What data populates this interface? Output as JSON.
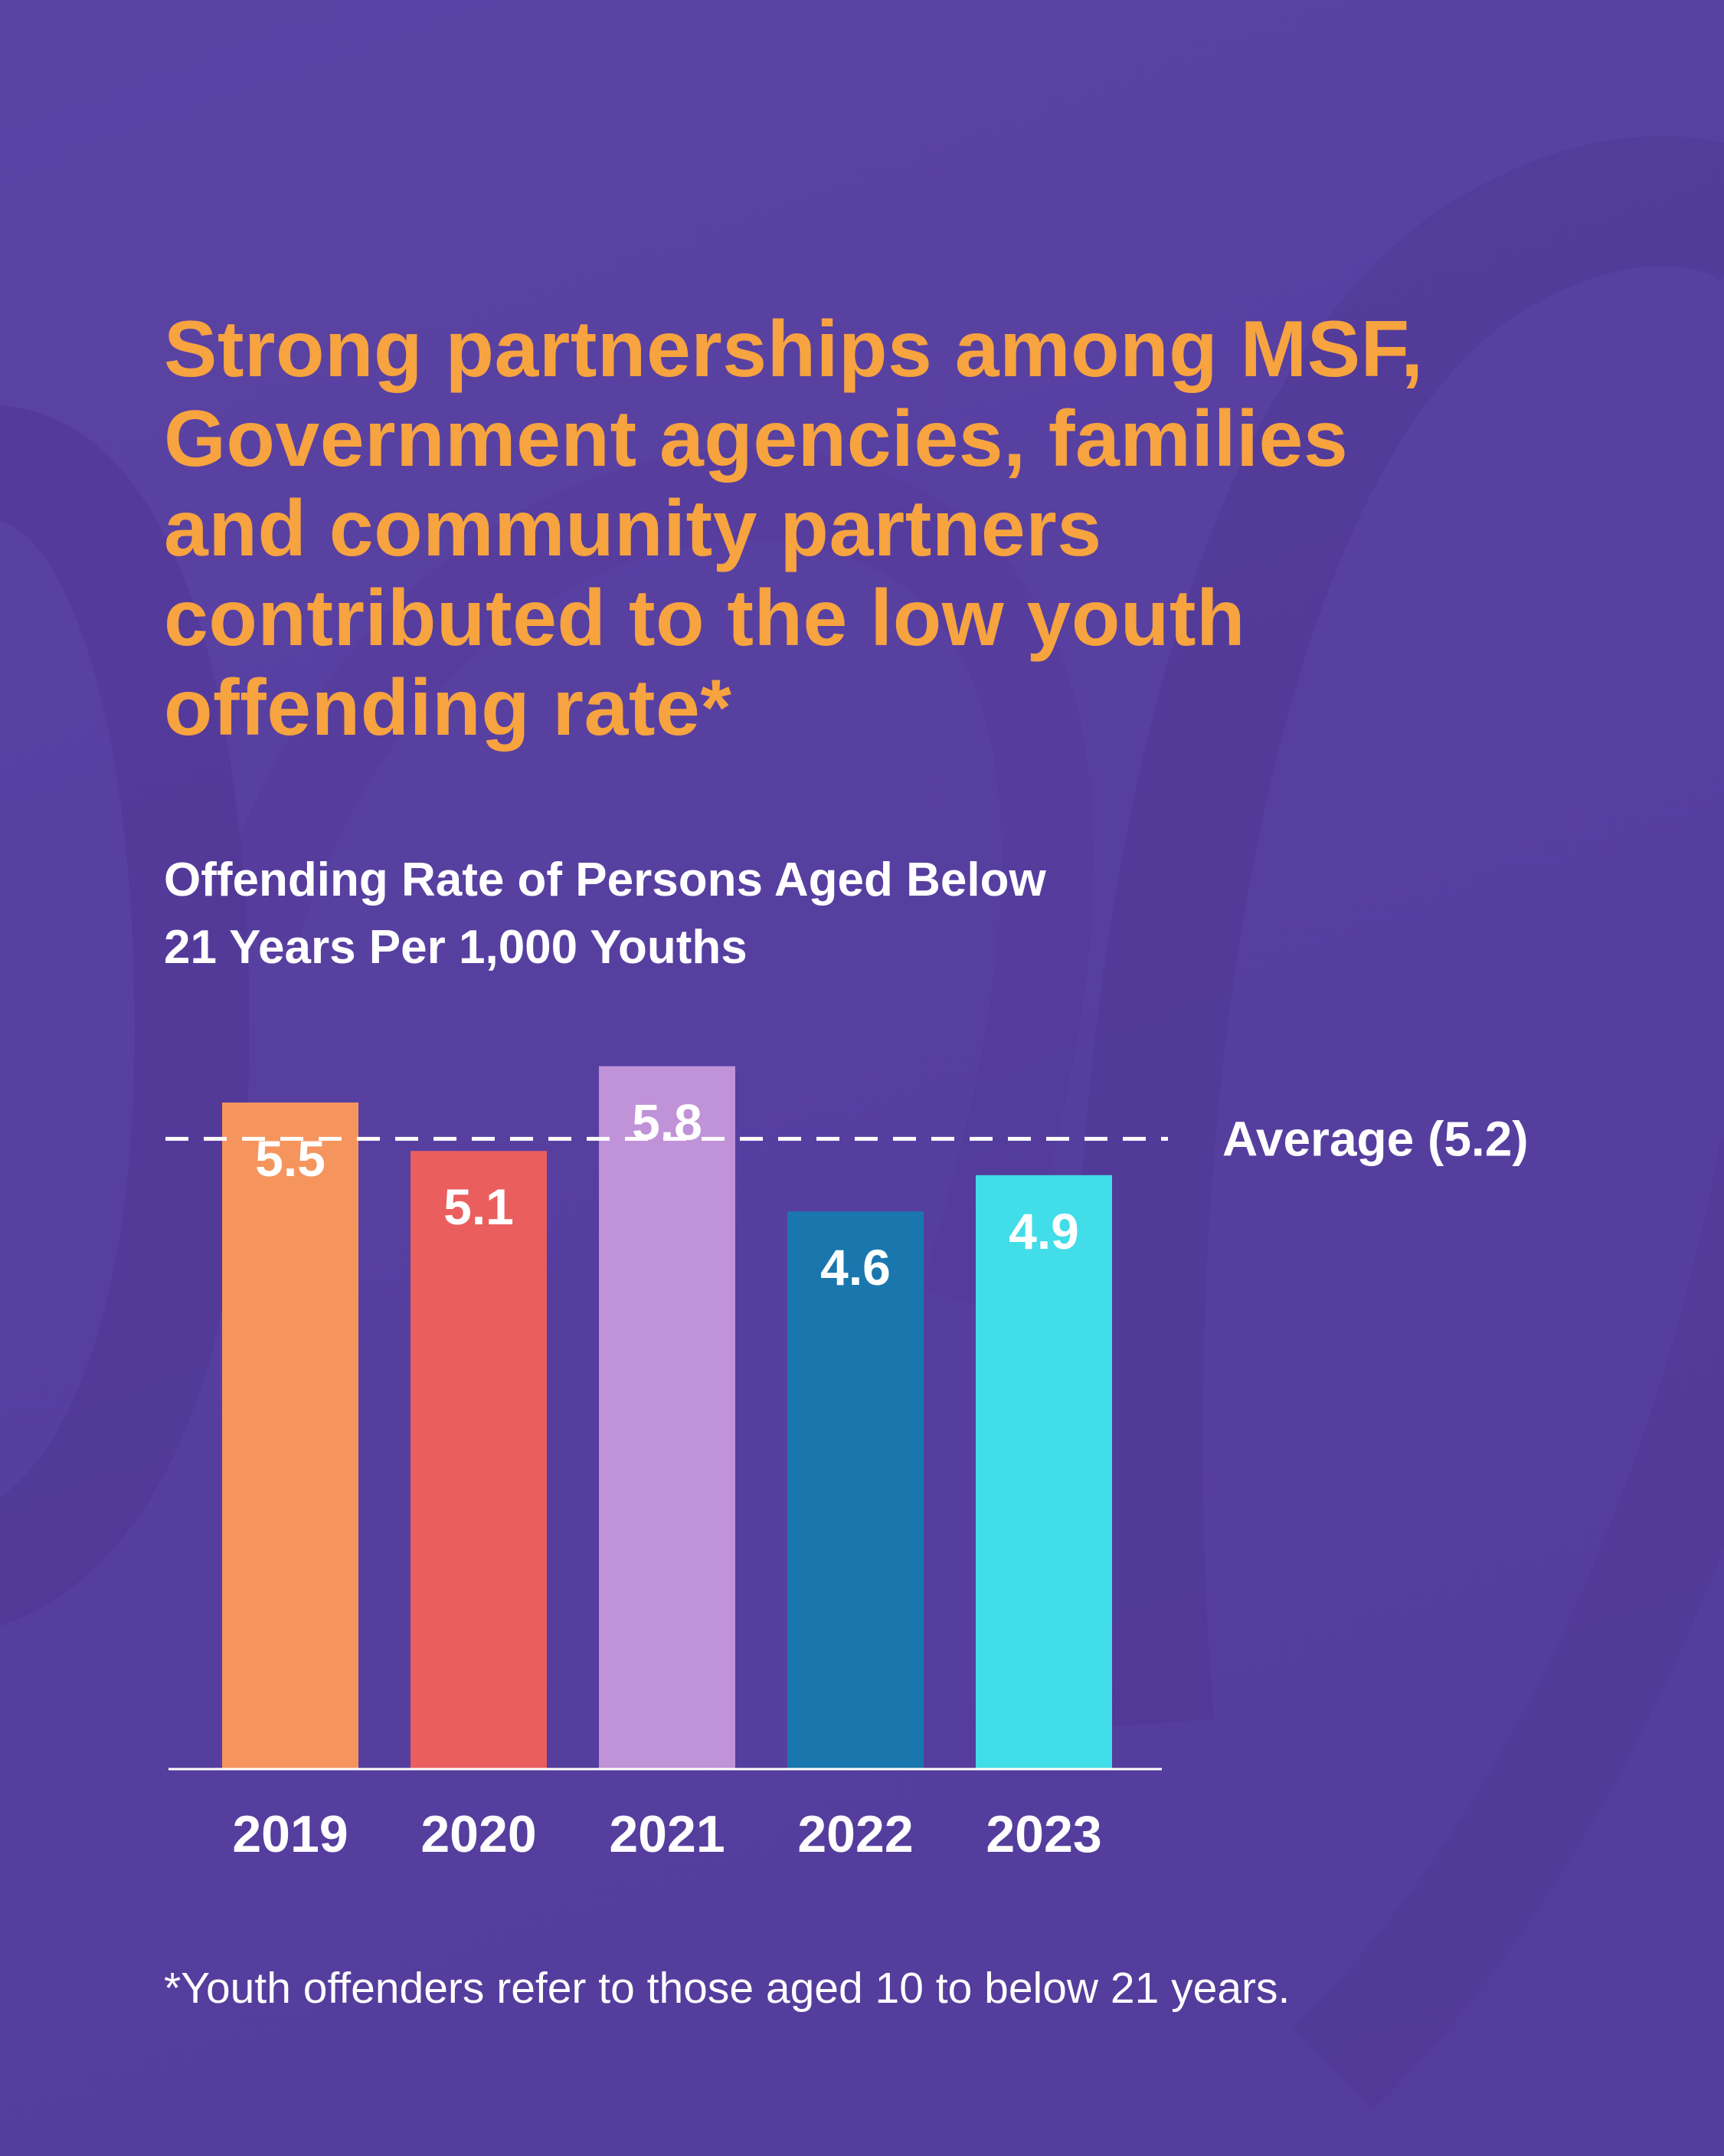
{
  "headline": {
    "lines": [
      "Strong partnerships among MSF,",
      "Government agencies, families",
      "and community partners",
      "contributed to the low youth",
      "offending rate*"
    ]
  },
  "chart_data": {
    "type": "bar",
    "title": "Offending Rate of Persons Aged Below 21 Years Per 1,000 Youths",
    "title_lines": [
      "Offending Rate of Persons Aged Below",
      "21 Years Per 1,000 Youths"
    ],
    "categories": [
      "2019",
      "2020",
      "2021",
      "2022",
      "2023"
    ],
    "values": [
      5.5,
      5.1,
      5.8,
      4.6,
      4.9
    ],
    "value_labels": [
      "5.5",
      "5.1",
      "5.8",
      "4.6",
      "4.9"
    ],
    "bar_colors": [
      "#f5955d",
      "#ea5e5e",
      "#c092d8",
      "#1a77ae",
      "#41dde8"
    ],
    "reference_line": {
      "value": 5.2,
      "label": "Average (5.2)",
      "style": "dashed",
      "color": "#ffffff"
    },
    "xlabel": "",
    "ylabel": "",
    "ylim": [
      0,
      6.2
    ],
    "grid": false,
    "legend": "none"
  },
  "footnote": "*Youth offenders refer to those aged 10 to below 21 years.",
  "colors": {
    "background": "#573fa0",
    "headline": "#f6a340",
    "text": "#ffffff"
  }
}
